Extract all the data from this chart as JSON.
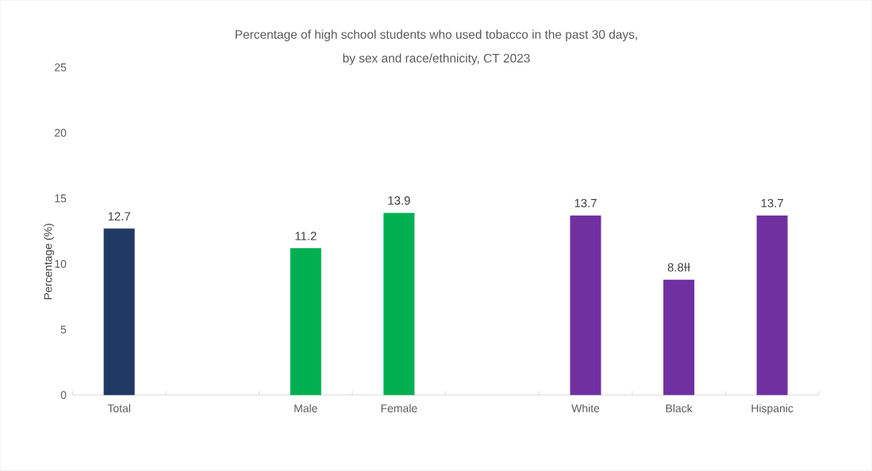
{
  "chart_data": {
    "type": "bar",
    "title": "Percentage of high school students who used tobacco in the past 30 days,\nby sex and race/ethnicity, CT 2023",
    "ylabel": "Percentage (%)",
    "categories": [
      "Total",
      null,
      "Male",
      "Female",
      null,
      "White",
      "Black",
      "Hispanic"
    ],
    "values": [
      12.7,
      null,
      11.2,
      13.9,
      null,
      13.7,
      8.8,
      13.7
    ],
    "colors": [
      "#203864",
      null,
      "#00b050",
      "#00b050",
      null,
      "#7030a0",
      "#7030a0",
      "#7030a0"
    ],
    "value_labels": [
      "12.7",
      null,
      "11.2",
      "13.9",
      null,
      "13.7",
      "8.8ƗƗ",
      "13.7"
    ],
    "ylim": [
      0,
      25
    ],
    "yticks": [
      0,
      5,
      10,
      15,
      20,
      25
    ]
  }
}
